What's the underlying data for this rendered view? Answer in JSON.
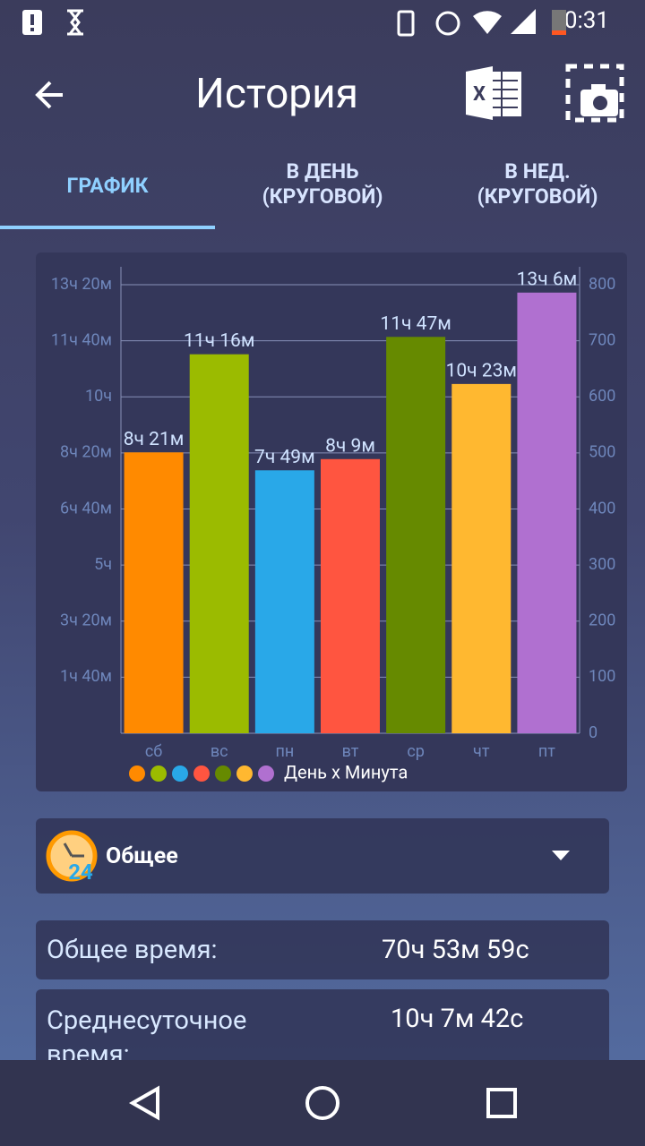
{
  "status_bar": {
    "time": "0:31"
  },
  "toolbar": {
    "title": "История"
  },
  "tabs": [
    "ГРАФИК",
    "В ДЕНЬ\n(КРУГОВОЙ)",
    "В НЕД.\n(КРУГОВОЙ)"
  ],
  "chart_data": {
    "type": "bar",
    "categories": [
      "сб",
      "вс",
      "пн",
      "вт",
      "ср",
      "чт",
      "пт"
    ],
    "series": [
      {
        "name": "День x Минута",
        "colors": [
          "#ff8a00",
          "#9bbb00",
          "#29a8e8",
          "#ff5540",
          "#668a00",
          "#ffb830",
          "#b070d0"
        ],
        "values": [
          501,
          676,
          469,
          489,
          707,
          623,
          786
        ],
        "value_labels": [
          "8ч 21м",
          "11ч 16м",
          "7ч 49м",
          "8ч 9м",
          "11ч 47м",
          "10ч 23м",
          "13ч 6м"
        ]
      }
    ],
    "ylim": [
      0,
      832
    ],
    "yticks": [
      {
        "value": 100,
        "label": "1ч 40м"
      },
      {
        "value": 200,
        "label": "3ч 20м"
      },
      {
        "value": 300,
        "label": "5ч"
      },
      {
        "value": 400,
        "label": "6ч 40м"
      },
      {
        "value": 500,
        "label": "8ч 20м"
      },
      {
        "value": 600,
        "label": "10ч"
      },
      {
        "value": 700,
        "label": "11ч 40м"
      },
      {
        "value": 800,
        "label": "13ч 20м"
      }
    ],
    "y2lim": [
      0,
      832
    ],
    "y2ticks": [
      0,
      100,
      200,
      300,
      400,
      500,
      600,
      700,
      800
    ],
    "grid": true
  },
  "dropdown": {
    "label": "Общее"
  },
  "stats": {
    "rows": [
      [
        "Общее время:",
        "70ч 53м 59с"
      ],
      [
        "Среднесуточное время:",
        "10ч 7м 42с"
      ]
    ]
  }
}
